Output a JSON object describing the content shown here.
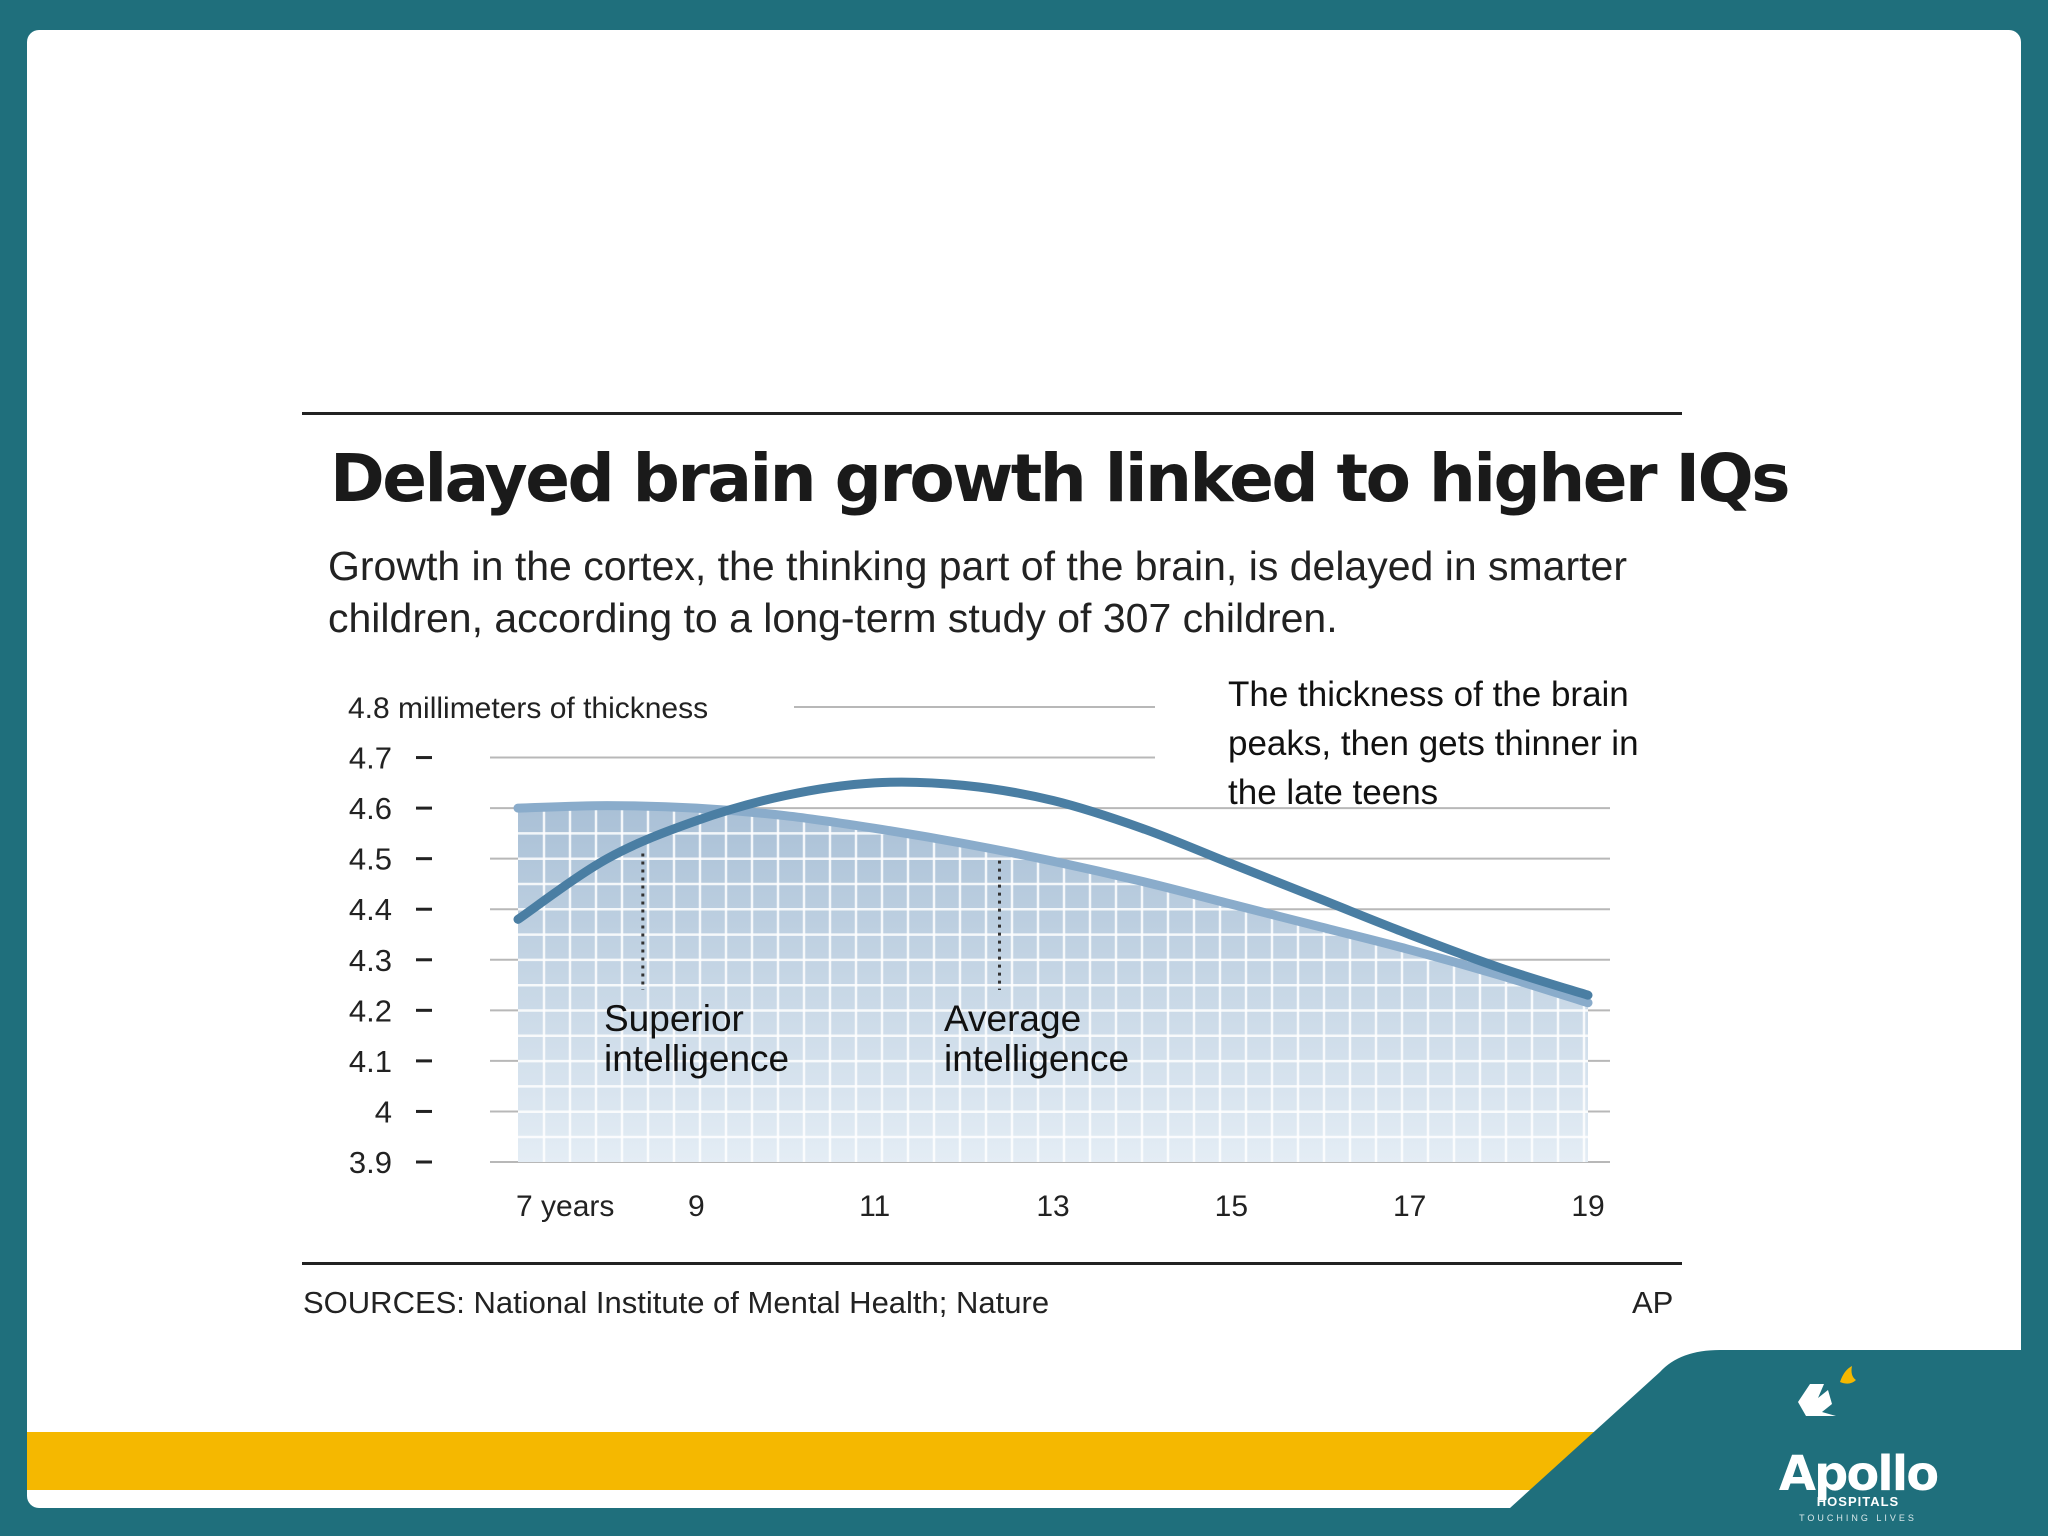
{
  "colors": {
    "frame": "#1f6f7c",
    "accent_bar": "#f5b800",
    "superior_line": "#4a7ea3",
    "average_line": "#8aaccb",
    "area_fill_top": "#a9c0d6",
    "area_fill_bottom": "#e4edf5"
  },
  "chart_data": {
    "type": "line",
    "title": "Delayed brain growth linked to higher IQs",
    "subtitle": "Growth in the cortex, the thinking part of the brain, is delayed in smarter children, according to a long-term study of 307 children.",
    "ylabel": "millimeters of thickness",
    "ylim": [
      3.9,
      4.8
    ],
    "y_ticks": [
      "4.8",
      "4.7",
      "4.6",
      "4.5",
      "4.4",
      "4.3",
      "4.2",
      "4.1",
      "4",
      "3.9"
    ],
    "y_tick_values": [
      4.8,
      4.7,
      4.6,
      4.5,
      4.4,
      4.3,
      4.2,
      4.1,
      4.0,
      3.9
    ],
    "xlim": [
      7,
      19
    ],
    "x_ticks": [
      "7 years",
      "9",
      "11",
      "13",
      "15",
      "17",
      "19"
    ],
    "x_tick_values": [
      7,
      9,
      11,
      13,
      15,
      17,
      19
    ],
    "grid": true,
    "series": [
      {
        "name": "Superior intelligence",
        "x": [
          7,
          8,
          9,
          10,
          11,
          12,
          13,
          14,
          15,
          16,
          17,
          18,
          19
        ],
        "y": [
          4.38,
          4.5,
          4.575,
          4.625,
          4.65,
          4.645,
          4.615,
          4.56,
          4.49,
          4.42,
          4.35,
          4.285,
          4.23
        ],
        "marker_x": 8.4
      },
      {
        "name": "Average intelligence",
        "x": [
          7,
          8,
          9,
          10,
          11,
          12,
          13,
          14,
          15,
          16,
          17,
          18,
          19
        ],
        "y": [
          4.6,
          4.605,
          4.6,
          4.585,
          4.56,
          4.53,
          4.495,
          4.455,
          4.41,
          4.365,
          4.32,
          4.27,
          4.215
        ],
        "marker_x": 12.4
      }
    ],
    "annotations": [
      "The thickness of the brain peaks, then gets thinner in the late teens"
    ],
    "source": "SOURCES: National Institute of Mental Health; Nature",
    "credit": "AP"
  },
  "branding": {
    "logo_name": "Apollo",
    "logo_sub": "HOSPITALS",
    "logo_tagline": "TOUCHING LIVES",
    "logo_icon": "apollo-emblem-icon"
  }
}
